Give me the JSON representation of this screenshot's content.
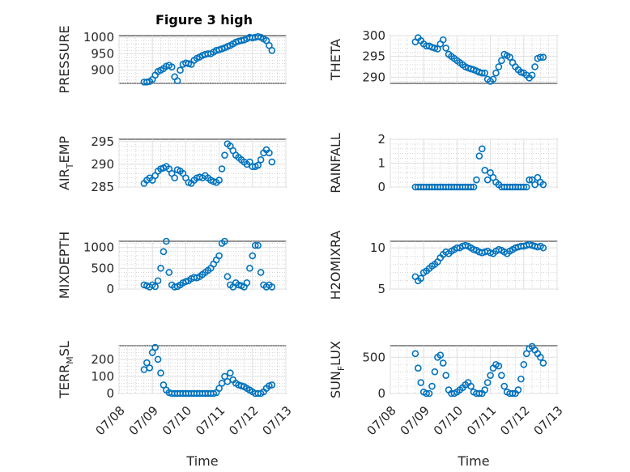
{
  "figure": {
    "title": "Figure 3 high"
  },
  "chart_data": [
    {
      "type": "scatter",
      "id": "pressure",
      "title": "Figure 3 high",
      "ylabel": "PRESSURE",
      "xlabel": "",
      "ylim": [
        860,
        1005
      ],
      "yticks": [
        900,
        950,
        1000
      ],
      "xlim": [
        "07/08",
        "07/13"
      ],
      "grid": true,
      "minor_grid": true,
      "x": [
        "07/08 18:00",
        "07/08 20:00",
        "07/08 22:00",
        "07/09 00:00",
        "07/09 02:00",
        "07/09 04:00",
        "07/09 06:00",
        "07/09 08:00",
        "07/09 10:00",
        "07/09 12:00",
        "07/09 14:00",
        "07/09 16:00",
        "07/09 18:00",
        "07/09 20:00",
        "07/09 22:00",
        "07/10 00:00",
        "07/10 02:00",
        "07/10 04:00",
        "07/10 06:00",
        "07/10 08:00",
        "07/10 10:00",
        "07/10 12:00",
        "07/10 14:00",
        "07/10 16:00",
        "07/10 18:00",
        "07/10 20:00",
        "07/10 22:00",
        "07/11 00:00",
        "07/11 02:00",
        "07/11 04:00",
        "07/11 06:00",
        "07/11 08:00",
        "07/11 10:00",
        "07/11 12:00",
        "07/11 14:00",
        "07/11 16:00",
        "07/11 18:00",
        "07/11 20:00",
        "07/11 22:00",
        "07/12 00:00",
        "07/12 02:00",
        "07/12 04:00",
        "07/12 06:00",
        "07/12 08:00",
        "07/12 10:00",
        "07/12 12:00",
        "07/12 14:00"
      ],
      "y": [
        864,
        864,
        866,
        872,
        885,
        896,
        900,
        905,
        912,
        915,
        910,
        880,
        868,
        900,
        918,
        922,
        920,
        918,
        930,
        936,
        940,
        945,
        948,
        950,
        950,
        955,
        960,
        962,
        965,
        968,
        972,
        975,
        980,
        985,
        988,
        990,
        992,
        996,
        1000,
        998,
        1000,
        1002,
        1000,
        995,
        990,
        975,
        960
      ]
    },
    {
      "type": "scatter",
      "id": "theta",
      "title": "",
      "ylabel": "THETA",
      "xlabel": "",
      "ylim": [
        288.5,
        300
      ],
      "yticks": [
        290,
        295,
        300
      ],
      "xlim": [
        "07/08",
        "07/13"
      ],
      "grid": true,
      "minor_grid": true,
      "x": [
        "07/08 18:00",
        "07/08 20:00",
        "07/08 22:00",
        "07/09 00:00",
        "07/09 02:00",
        "07/09 04:00",
        "07/09 06:00",
        "07/09 08:00",
        "07/09 10:00",
        "07/09 12:00",
        "07/09 14:00",
        "07/09 16:00",
        "07/09 18:00",
        "07/09 20:00",
        "07/09 22:00",
        "07/10 00:00",
        "07/10 02:00",
        "07/10 04:00",
        "07/10 06:00",
        "07/10 08:00",
        "07/10 10:00",
        "07/10 12:00",
        "07/10 14:00",
        "07/10 16:00",
        "07/10 18:00",
        "07/10 20:00",
        "07/10 22:00",
        "07/11 00:00",
        "07/11 02:00",
        "07/11 04:00",
        "07/11 06:00",
        "07/11 08:00",
        "07/11 10:00",
        "07/11 12:00",
        "07/11 14:00",
        "07/11 16:00",
        "07/11 18:00",
        "07/11 20:00",
        "07/11 22:00",
        "07/12 00:00",
        "07/12 02:00",
        "07/12 04:00",
        "07/12 06:00",
        "07/12 08:00",
        "07/12 10:00",
        "07/12 12:00",
        "07/12 14:00"
      ],
      "y": [
        298.5,
        299.5,
        298.8,
        298,
        297.5,
        297.5,
        297.2,
        297,
        296.8,
        298,
        299,
        297,
        295.5,
        295,
        294.5,
        294,
        293.5,
        293,
        292.5,
        292.2,
        292,
        291.8,
        291.5,
        291.2,
        291,
        291,
        289.5,
        289,
        289.5,
        291,
        292.5,
        294,
        295.5,
        295.2,
        294.8,
        293.5,
        292.5,
        291.8,
        291.2,
        291,
        290.5,
        289.8,
        290.5,
        292.5,
        294.5,
        294.8,
        294.8
      ]
    },
    {
      "type": "scatter",
      "id": "air-temp",
      "title": "",
      "ylabel": "AIR_TEMP",
      "xlabel": "",
      "ylim": [
        285,
        295.5
      ],
      "yticks": [
        285,
        290,
        295
      ],
      "xlim": [
        "07/08",
        "07/13"
      ],
      "grid": true,
      "minor_grid": true,
      "x": [
        "07/08 18:00",
        "07/08 20:00",
        "07/08 22:00",
        "07/09 00:00",
        "07/09 02:00",
        "07/09 04:00",
        "07/09 06:00",
        "07/09 08:00",
        "07/09 10:00",
        "07/09 12:00",
        "07/09 14:00",
        "07/09 16:00",
        "07/09 18:00",
        "07/09 20:00",
        "07/09 22:00",
        "07/10 00:00",
        "07/10 02:00",
        "07/10 04:00",
        "07/10 06:00",
        "07/10 08:00",
        "07/10 10:00",
        "07/10 12:00",
        "07/10 14:00",
        "07/10 16:00",
        "07/10 18:00",
        "07/10 20:00",
        "07/10 22:00",
        "07/11 00:00",
        "07/11 02:00",
        "07/11 04:00",
        "07/11 06:00",
        "07/11 08:00",
        "07/11 10:00",
        "07/11 12:00",
        "07/11 14:00",
        "07/11 16:00",
        "07/11 18:00",
        "07/11 20:00",
        "07/11 22:00",
        "07/12 00:00",
        "07/12 02:00",
        "07/12 04:00",
        "07/12 06:00",
        "07/12 08:00",
        "07/12 10:00",
        "07/12 12:00",
        "07/12 14:00"
      ],
      "y": [
        285.8,
        286.5,
        287,
        286.5,
        287.5,
        288.5,
        289,
        289.2,
        289.5,
        289,
        288,
        287,
        288.8,
        288.5,
        288,
        287,
        286,
        285.8,
        286.5,
        287,
        287.2,
        287,
        287.5,
        287,
        286.5,
        286.2,
        286,
        286.5,
        289,
        292,
        294.5,
        294,
        293,
        292,
        291.5,
        291,
        290.5,
        290,
        290.5,
        289.5,
        289.5,
        289.8,
        291,
        292.5,
        293.2,
        292.5,
        290.5
      ]
    },
    {
      "type": "scatter",
      "id": "rainfall",
      "title": "",
      "ylabel": "RAINFALL",
      "xlabel": "",
      "ylim": [
        0,
        2
      ],
      "yticks": [
        0,
        1,
        2
      ],
      "xlim": [
        "07/08",
        "07/13"
      ],
      "grid": true,
      "minor_grid": true,
      "x": [
        "07/08 18:00",
        "07/08 20:00",
        "07/08 22:00",
        "07/09 00:00",
        "07/09 02:00",
        "07/09 04:00",
        "07/09 06:00",
        "07/09 08:00",
        "07/09 10:00",
        "07/09 12:00",
        "07/09 14:00",
        "07/09 16:00",
        "07/09 18:00",
        "07/09 20:00",
        "07/09 22:00",
        "07/10 00:00",
        "07/10 02:00",
        "07/10 04:00",
        "07/10 06:00",
        "07/10 08:00",
        "07/10 10:00",
        "07/10 12:00",
        "07/10 14:00",
        "07/10 16:00",
        "07/10 18:00",
        "07/10 20:00",
        "07/10 22:00",
        "07/11 00:00",
        "07/11 02:00",
        "07/11 04:00",
        "07/11 06:00",
        "07/11 08:00",
        "07/11 10:00",
        "07/11 12:00",
        "07/11 14:00",
        "07/11 16:00",
        "07/11 18:00",
        "07/11 20:00",
        "07/11 22:00",
        "07/12 00:00",
        "07/12 02:00",
        "07/12 04:00",
        "07/12 06:00",
        "07/12 08:00",
        "07/12 10:00",
        "07/12 12:00",
        "07/12 14:00"
      ],
      "y": [
        0,
        0,
        0,
        0,
        0,
        0,
        0,
        0,
        0,
        0,
        0,
        0,
        0,
        0,
        0,
        0,
        0,
        0,
        0,
        0,
        0,
        0,
        0.3,
        1.3,
        1.6,
        0.7,
        0.3,
        0.6,
        0.4,
        0.2,
        0.1,
        0,
        0,
        0,
        0,
        0,
        0,
        0,
        0,
        0,
        0,
        0.3,
        0.3,
        0.1,
        0.4,
        0.2,
        0.1
      ]
    },
    {
      "type": "scatter",
      "id": "mixdepth",
      "title": "",
      "ylabel": "MIXDEPTH",
      "xlabel": "",
      "ylim": [
        0,
        1150
      ],
      "yticks": [
        0,
        500,
        1000
      ],
      "xlim": [
        "07/08",
        "07/13"
      ],
      "grid": true,
      "minor_grid": true,
      "x": [
        "07/08 18:00",
        "07/08 20:00",
        "07/08 22:00",
        "07/09 00:00",
        "07/09 02:00",
        "07/09 04:00",
        "07/09 06:00",
        "07/09 08:00",
        "07/09 10:00",
        "07/09 12:00",
        "07/09 14:00",
        "07/09 16:00",
        "07/09 18:00",
        "07/09 20:00",
        "07/09 22:00",
        "07/10 00:00",
        "07/10 02:00",
        "07/10 04:00",
        "07/10 06:00",
        "07/10 08:00",
        "07/10 10:00",
        "07/10 12:00",
        "07/10 14:00",
        "07/10 16:00",
        "07/10 18:00",
        "07/10 20:00",
        "07/10 22:00",
        "07/11 00:00",
        "07/11 02:00",
        "07/11 04:00",
        "07/11 06:00",
        "07/11 08:00",
        "07/11 10:00",
        "07/11 12:00",
        "07/11 14:00",
        "07/11 16:00",
        "07/11 18:00",
        "07/11 20:00",
        "07/11 22:00",
        "07/12 00:00",
        "07/12 02:00",
        "07/12 04:00",
        "07/12 06:00",
        "07/12 08:00",
        "07/12 10:00",
        "07/12 12:00",
        "07/12 14:00"
      ],
      "y": [
        100,
        80,
        50,
        100,
        60,
        200,
        500,
        900,
        1150,
        400,
        100,
        50,
        60,
        100,
        150,
        180,
        200,
        250,
        280,
        270,
        300,
        350,
        400,
        450,
        500,
        600,
        700,
        800,
        1100,
        1150,
        300,
        100,
        50,
        150,
        100,
        80,
        50,
        150,
        500,
        800,
        1050,
        1050,
        400,
        100,
        50,
        100,
        50
      ]
    },
    {
      "type": "scatter",
      "id": "h2omixra",
      "title": "",
      "ylabel": "H2OMIXRA",
      "xlabel": "",
      "ylim": [
        5,
        10.8
      ],
      "yticks": [
        5,
        10
      ],
      "xlim": [
        "07/08",
        "07/13"
      ],
      "grid": true,
      "minor_grid": true,
      "x": [
        "07/08 18:00",
        "07/08 20:00",
        "07/08 22:00",
        "07/09 00:00",
        "07/09 02:00",
        "07/09 04:00",
        "07/09 06:00",
        "07/09 08:00",
        "07/09 10:00",
        "07/09 12:00",
        "07/09 14:00",
        "07/09 16:00",
        "07/09 18:00",
        "07/09 20:00",
        "07/09 22:00",
        "07/10 00:00",
        "07/10 02:00",
        "07/10 04:00",
        "07/10 06:00",
        "07/10 08:00",
        "07/10 10:00",
        "07/10 12:00",
        "07/10 14:00",
        "07/10 16:00",
        "07/10 18:00",
        "07/10 20:00",
        "07/10 22:00",
        "07/11 00:00",
        "07/11 02:00",
        "07/11 04:00",
        "07/11 06:00",
        "07/11 08:00",
        "07/11 10:00",
        "07/11 12:00",
        "07/11 14:00",
        "07/11 16:00",
        "07/11 18:00",
        "07/11 20:00",
        "07/11 22:00",
        "07/12 00:00",
        "07/12 02:00",
        "07/12 04:00",
        "07/12 06:00",
        "07/12 08:00",
        "07/12 10:00",
        "07/12 12:00",
        "07/12 14:00"
      ],
      "y": [
        6.5,
        6.0,
        6.3,
        7.0,
        7.2,
        7.5,
        7.8,
        8.0,
        8.3,
        8.8,
        9.2,
        9.5,
        9.3,
        9.6,
        9.8,
        10.0,
        10.0,
        10.2,
        10.3,
        10.2,
        10.0,
        9.8,
        9.7,
        9.5,
        9.4,
        9.5,
        9.6,
        9.4,
        9.3,
        9.6,
        9.8,
        9.7,
        9.5,
        9.3,
        9.6,
        9.8,
        10.0,
        10.1,
        10.2,
        10.2,
        10.3,
        10.4,
        10.3,
        10.2,
        10.1,
        10.2,
        10.0
      ]
    },
    {
      "type": "scatter",
      "id": "terr-msl",
      "title": "",
      "ylabel": "TERR_MSL",
      "xlabel": "Time",
      "ylim": [
        0,
        280
      ],
      "yticks": [
        0,
        100,
        200
      ],
      "xlim": [
        "07/08",
        "07/13"
      ],
      "xticks": [
        "07/08",
        "07/09",
        "07/10",
        "07/11",
        "07/12",
        "07/13"
      ],
      "grid": true,
      "minor_grid": true,
      "x": [
        "07/08 18:00",
        "07/08 20:00",
        "07/08 22:00",
        "07/09 00:00",
        "07/09 02:00",
        "07/09 04:00",
        "07/09 06:00",
        "07/09 08:00",
        "07/09 10:00",
        "07/09 12:00",
        "07/09 14:00",
        "07/09 16:00",
        "07/09 18:00",
        "07/09 20:00",
        "07/09 22:00",
        "07/10 00:00",
        "07/10 02:00",
        "07/10 04:00",
        "07/10 06:00",
        "07/10 08:00",
        "07/10 10:00",
        "07/10 12:00",
        "07/10 14:00",
        "07/10 16:00",
        "07/10 18:00",
        "07/10 20:00",
        "07/10 22:00",
        "07/11 00:00",
        "07/11 02:00",
        "07/11 04:00",
        "07/11 06:00",
        "07/11 08:00",
        "07/11 10:00",
        "07/11 12:00",
        "07/11 14:00",
        "07/11 16:00",
        "07/11 18:00",
        "07/11 20:00",
        "07/11 22:00",
        "07/12 00:00",
        "07/12 02:00",
        "07/12 04:00",
        "07/12 06:00",
        "07/12 08:00",
        "07/12 10:00",
        "07/12 12:00",
        "07/12 14:00"
      ],
      "y": [
        140,
        180,
        150,
        240,
        270,
        200,
        120,
        50,
        20,
        5,
        0,
        0,
        0,
        0,
        0,
        0,
        0,
        0,
        0,
        0,
        0,
        0,
        0,
        0,
        0,
        0,
        5,
        30,
        60,
        100,
        70,
        120,
        80,
        60,
        50,
        45,
        40,
        30,
        20,
        10,
        0,
        0,
        0,
        10,
        30,
        45,
        50
      ]
    },
    {
      "type": "scatter",
      "id": "sun-flux",
      "title": "",
      "ylabel": "SUN_FLUX",
      "xlabel": "Time",
      "ylim": [
        0,
        660
      ],
      "yticks": [
        0,
        500
      ],
      "xlim": [
        "07/08",
        "07/13"
      ],
      "xticks": [
        "07/08",
        "07/09",
        "07/10",
        "07/11",
        "07/12",
        "07/13"
      ],
      "grid": true,
      "minor_grid": true,
      "x": [
        "07/08 18:00",
        "07/08 20:00",
        "07/08 22:00",
        "07/09 00:00",
        "07/09 02:00",
        "07/09 04:00",
        "07/09 06:00",
        "07/09 08:00",
        "07/09 10:00",
        "07/09 12:00",
        "07/09 14:00",
        "07/09 16:00",
        "07/09 18:00",
        "07/09 20:00",
        "07/09 22:00",
        "07/10 00:00",
        "07/10 02:00",
        "07/10 04:00",
        "07/10 06:00",
        "07/10 08:00",
        "07/10 10:00",
        "07/10 12:00",
        "07/10 14:00",
        "07/10 16:00",
        "07/10 18:00",
        "07/10 20:00",
        "07/10 22:00",
        "07/11 00:00",
        "07/11 02:00",
        "07/11 04:00",
        "07/11 06:00",
        "07/11 08:00",
        "07/11 10:00",
        "07/11 12:00",
        "07/11 14:00",
        "07/11 16:00",
        "07/11 18:00",
        "07/11 20:00",
        "07/11 22:00",
        "07/12 00:00",
        "07/12 02:00",
        "07/12 04:00",
        "07/12 06:00",
        "07/12 08:00",
        "07/12 10:00",
        "07/12 12:00",
        "07/12 14:00"
      ],
      "y": [
        550,
        350,
        150,
        20,
        0,
        0,
        100,
        300,
        500,
        530,
        420,
        250,
        50,
        0,
        0,
        20,
        50,
        80,
        120,
        150,
        100,
        20,
        0,
        0,
        0,
        50,
        150,
        250,
        350,
        400,
        380,
        250,
        100,
        20,
        0,
        0,
        0,
        50,
        200,
        400,
        550,
        620,
        650,
        600,
        550,
        500,
        420
      ]
    }
  ]
}
